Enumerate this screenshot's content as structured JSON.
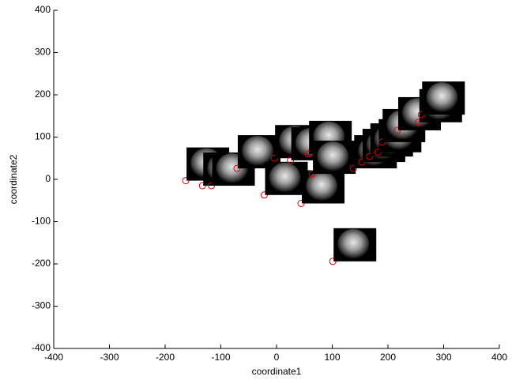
{
  "chart_data": {
    "type": "scatter",
    "x_label": "coordinate1",
    "y_label": "coordinate2",
    "x": [
      -163,
      -133,
      -117,
      -71,
      -22,
      -4,
      25,
      57,
      44,
      64,
      101,
      138,
      153,
      167,
      182,
      189,
      217,
      255,
      260
    ],
    "values": [
      -3,
      -15,
      -15,
      26,
      -37,
      50,
      45,
      60,
      -57,
      13,
      -194,
      26,
      41,
      54,
      64,
      88,
      116,
      135,
      153
    ],
    "color": "#e00000",
    "xlim": [
      -400,
      400
    ],
    "xticks": [
      -400,
      -300,
      -200,
      -100,
      0,
      100,
      200,
      300,
      400
    ],
    "ylim": [
      -400,
      400
    ],
    "yticks": [
      -400,
      -300,
      -200,
      -100,
      0,
      100,
      200,
      300,
      400
    ]
  }
}
